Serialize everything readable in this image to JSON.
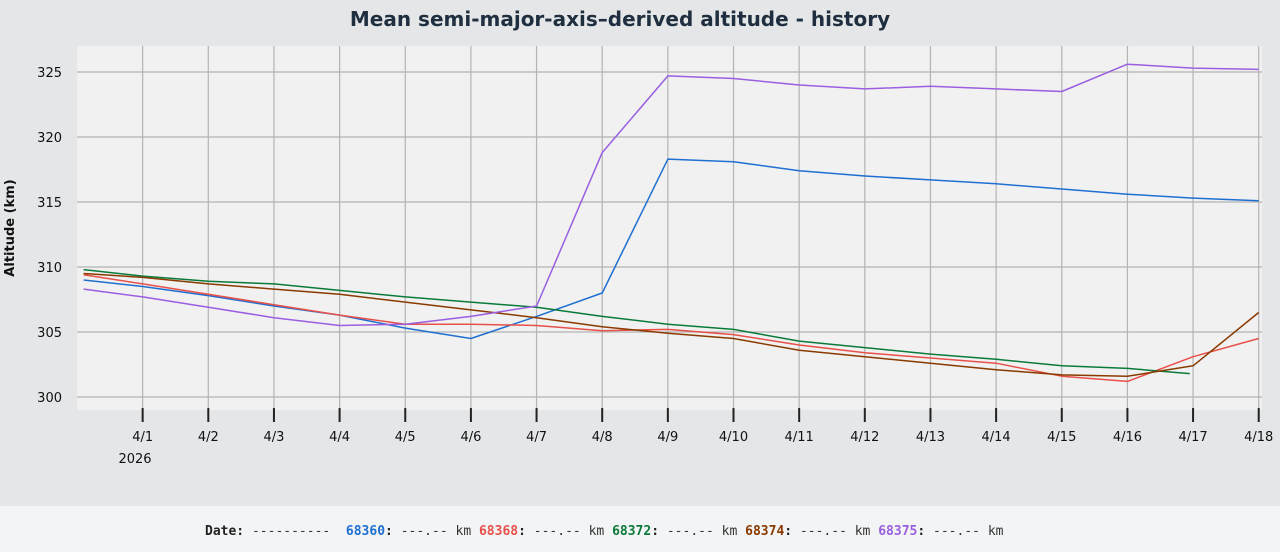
{
  "chart_data": {
    "type": "line",
    "title": "Mean semi-major-axis–derived altitude - history",
    "xlabel": "",
    "ylabel": "Altitude (km)",
    "ylim": [
      299,
      327
    ],
    "yticks": [
      300,
      305,
      310,
      315,
      320,
      325
    ],
    "xlim": [
      -1,
      17.05
    ],
    "xticks": [
      "4/1",
      "4/2",
      "4/3",
      "4/4",
      "4/5",
      "4/6",
      "4/7",
      "4/8",
      "4/9",
      "4/10",
      "4/11",
      "4/12",
      "4/13",
      "4/14",
      "4/15",
      "4/16",
      "4/17",
      "4/18"
    ],
    "year_label": "2026",
    "grid": true,
    "series": [
      {
        "name": "68360",
        "color": "#1f6fd1",
        "x": [
          -0.9,
          0,
          1,
          2,
          3,
          4,
          5,
          6,
          7,
          8,
          9,
          10,
          11,
          12,
          13,
          14,
          15,
          16,
          17
        ],
        "y": [
          309.0,
          308.5,
          307.8,
          307.0,
          306.3,
          305.3,
          304.5,
          306.2,
          308.0,
          318.3,
          318.1,
          317.4,
          317.0,
          316.7,
          316.4,
          316.0,
          315.6,
          315.3,
          315.1
        ]
      },
      {
        "name": "68368",
        "color": "#e8504a",
        "x": [
          -0.9,
          0,
          1,
          2,
          3,
          4,
          5,
          6,
          7,
          8,
          9,
          10,
          11,
          12,
          13,
          14,
          15,
          16,
          17
        ],
        "y": [
          309.4,
          308.7,
          307.9,
          307.1,
          306.3,
          305.6,
          305.6,
          305.5,
          305.1,
          305.2,
          304.8,
          304.0,
          303.4,
          303.0,
          302.6,
          301.6,
          301.2,
          303.1,
          304.5
        ]
      },
      {
        "name": "68372",
        "color": "#0a7a3a",
        "x": [
          -0.9,
          0,
          1,
          2,
          3,
          4,
          5,
          6,
          7,
          8,
          9,
          10,
          11,
          12,
          13,
          14,
          15,
          15.95
        ],
        "y": [
          309.8,
          309.3,
          308.9,
          308.7,
          308.2,
          307.7,
          307.3,
          306.9,
          306.2,
          305.6,
          305.2,
          304.3,
          303.8,
          303.3,
          302.9,
          302.4,
          302.2,
          301.8
        ]
      },
      {
        "name": "68374",
        "color": "#8a3a00",
        "x": [
          -0.9,
          0,
          1,
          2,
          3,
          4,
          5,
          6,
          7,
          8,
          9,
          10,
          11,
          12,
          13,
          14,
          15,
          16,
          17
        ],
        "y": [
          309.5,
          309.2,
          308.7,
          308.3,
          307.9,
          307.3,
          306.7,
          306.1,
          305.4,
          304.9,
          304.5,
          303.6,
          303.1,
          302.6,
          302.1,
          301.7,
          301.6,
          302.4,
          306.5
        ]
      },
      {
        "name": "68375",
        "color": "#9a5fe0",
        "x": [
          -0.9,
          0,
          1,
          2,
          3,
          4,
          5,
          6,
          7,
          8,
          9,
          10,
          11,
          12,
          13,
          14,
          15,
          16,
          17
        ],
        "y": [
          308.3,
          307.7,
          306.9,
          306.1,
          305.5,
          305.6,
          306.2,
          307.0,
          318.8,
          324.7,
          324.5,
          324.0,
          323.7,
          323.9,
          323.7,
          323.5,
          325.6,
          325.3,
          325.2
        ]
      }
    ]
  },
  "readout": {
    "date_label": "Date:",
    "date_value": "----------",
    "items": [
      {
        "id": "68360",
        "value": "---.--",
        "unit": "km",
        "color": "#1f6fd1"
      },
      {
        "id": "68368",
        "value": "---.--",
        "unit": "km",
        "color": "#e8504a"
      },
      {
        "id": "68372",
        "value": "---.--",
        "unit": "km",
        "color": "#0a7a3a"
      },
      {
        "id": "68374",
        "value": "---.--",
        "unit": "km",
        "color": "#8a3a00"
      },
      {
        "id": "68375",
        "value": "---.--",
        "unit": "km",
        "color": "#9a5fe0"
      }
    ]
  }
}
